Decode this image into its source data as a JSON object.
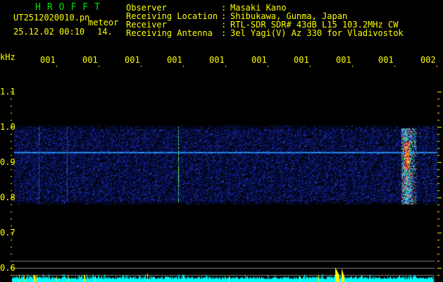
{
  "header": {
    "software": "HROFFT",
    "filename": "UT2512020010.pn",
    "mode": "meteor",
    "datetime": "25.12.02 00:10",
    "count": "14.",
    "fields": [
      {
        "label": "Observer",
        "value": "Masaki Kano"
      },
      {
        "label": "Receiving Location",
        "value": "Shibukawa, Gunma, Japan"
      },
      {
        "label": "Receiver",
        "value": "RTL-SDR SDR# 43dB L15 103.2MHz CW"
      },
      {
        "label": "Receiving Antenna",
        "value": "3el Yagi(V) Az 330 for Vladivostok"
      }
    ]
  },
  "axis": {
    "unit": "kHz",
    "y_labels": [
      "1.1",
      "1.0",
      "0.9",
      "0.8",
      "0.7",
      "0.6"
    ],
    "time_labels": [
      "0011",
      "0012",
      "0013",
      "0014",
      "0015",
      "0016",
      "0017",
      "0018",
      "0019",
      "0020"
    ]
  },
  "colors": {
    "text": "#ffff00",
    "title": "#00e000",
    "signal": "#00ffff",
    "spike": "#ffff00",
    "grid": "#808080"
  }
}
